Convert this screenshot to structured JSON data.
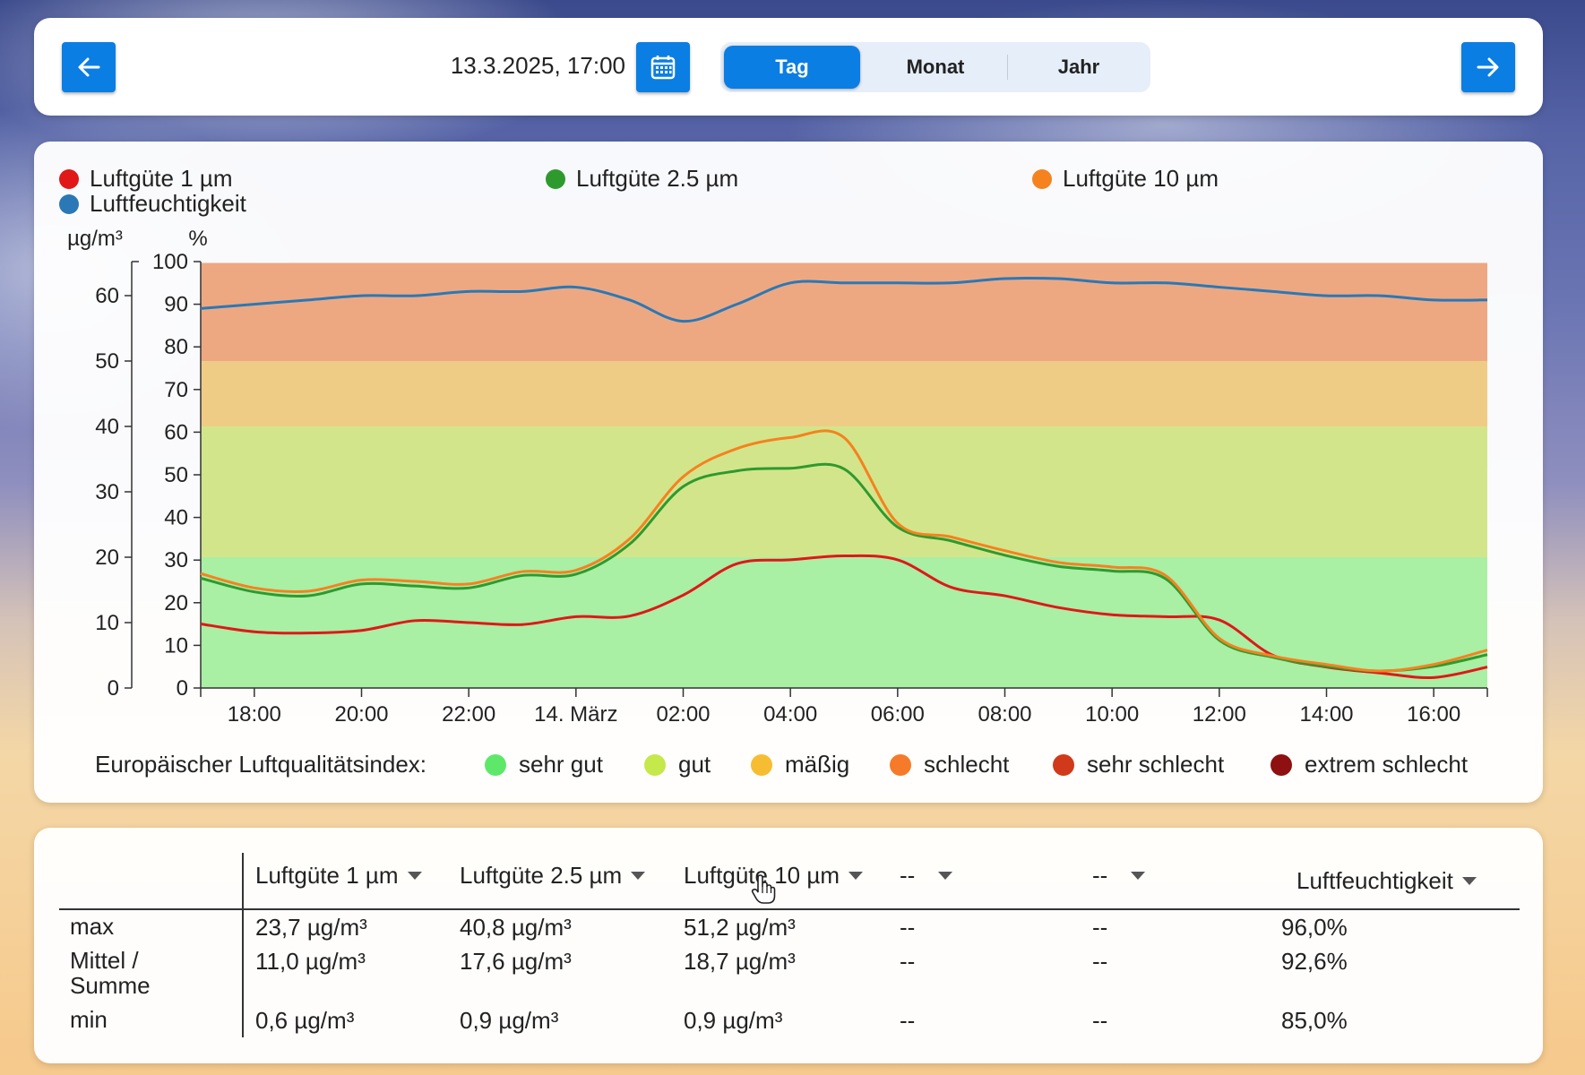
{
  "nav": {
    "date": "13.3.2025, 17:00",
    "tabs": [
      {
        "label": "Tag",
        "active": true
      },
      {
        "label": "Monat",
        "active": false
      },
      {
        "label": "Jahr",
        "active": false
      }
    ],
    "accent": "#0b7ee3"
  },
  "legend": [
    {
      "label": "Luftgüte 1 µm",
      "color": "#e01818"
    },
    {
      "label": "Luftgüte 2.5 µm",
      "color": "#2e9a2e"
    },
    {
      "label": "Luftgüte 10 µm",
      "color": "#f5821f"
    },
    {
      "label": "Luftfeuchtigkeit",
      "color": "#2a78b6"
    }
  ],
  "chart_data": {
    "type": "line",
    "y_left_label": "µg/m³",
    "y_right_label": "%",
    "y_left_range": [
      0,
      65
    ],
    "y_left_ticks": [
      0,
      10,
      20,
      30,
      40,
      50,
      60
    ],
    "y_right_range": [
      0,
      100
    ],
    "y_right_ticks": [
      0,
      10,
      20,
      30,
      40,
      50,
      60,
      70,
      80,
      90,
      100
    ],
    "x_ticks": [
      "18:00",
      "20:00",
      "22:00",
      "14. März",
      "02:00",
      "04:00",
      "06:00",
      "08:00",
      "10:00",
      "12:00",
      "14:00",
      "16:00"
    ],
    "x_range_hours": [
      17,
      41
    ],
    "bands": [
      {
        "from": 0,
        "to": 20,
        "color": "#a9efa4"
      },
      {
        "from": 20,
        "to": 40,
        "color": "#d3e58b"
      },
      {
        "from": 40,
        "to": 50,
        "color": "#efcc85"
      },
      {
        "from": 50,
        "to": 65,
        "color": "#eda882"
      }
    ],
    "series": [
      {
        "name": "Luftgüte 1 µm",
        "axis": "left",
        "color": "#e01818",
        "x": [
          17,
          18,
          19,
          20,
          21,
          22,
          23,
          24,
          25,
          26,
          27,
          28,
          29,
          30,
          31,
          32,
          33,
          34,
          35,
          36,
          37,
          38,
          39,
          40,
          41
        ],
        "values": [
          9.8,
          8.6,
          8.4,
          8.8,
          10.3,
          10.0,
          9.7,
          10.9,
          11.0,
          14.2,
          19.0,
          19.6,
          20.2,
          19.6,
          15.4,
          14.1,
          12.3,
          11.2,
          10.9,
          10.4,
          5.0,
          3.2,
          2.3,
          1.6,
          3.2
        ]
      },
      {
        "name": "Luftgüte 2.5 µm",
        "axis": "left",
        "color": "#2e9a2e",
        "x": [
          17,
          18,
          19,
          20,
          21,
          22,
          23,
          24,
          25,
          26,
          27,
          28,
          29,
          30,
          31,
          32,
          33,
          34,
          35,
          36,
          37,
          38,
          39,
          40,
          41
        ],
        "values": [
          16.8,
          14.7,
          14.1,
          15.9,
          15.6,
          15.3,
          17.2,
          17.4,
          22.0,
          30.8,
          33.2,
          33.6,
          33.5,
          24.6,
          22.5,
          20.3,
          18.6,
          17.9,
          16.7,
          7.3,
          4.7,
          3.3,
          2.6,
          3.3,
          5.1
        ]
      },
      {
        "name": "Luftgüte 10 µm",
        "axis": "left",
        "color": "#f5821f",
        "x": [
          17,
          18,
          19,
          20,
          21,
          22,
          23,
          24,
          25,
          26,
          27,
          28,
          29,
          30,
          31,
          32,
          33,
          34,
          35,
          36,
          37,
          38,
          39,
          40,
          41
        ],
        "values": [
          17.5,
          15.3,
          14.8,
          16.5,
          16.3,
          15.9,
          17.8,
          18.0,
          22.8,
          32.3,
          36.6,
          38.3,
          38.3,
          25.2,
          23.1,
          21.0,
          19.2,
          18.5,
          17.2,
          7.6,
          4.9,
          3.6,
          2.6,
          3.6,
          5.8
        ]
      },
      {
        "name": "Luftfeuchtigkeit",
        "axis": "right",
        "color": "#2a78b6",
        "x": [
          17,
          18,
          19,
          20,
          21,
          22,
          23,
          24,
          25,
          26,
          27,
          28,
          29,
          30,
          31,
          32,
          33,
          34,
          35,
          36,
          37,
          38,
          39,
          40,
          41
        ],
        "values": [
          89,
          90,
          91,
          92,
          92,
          93,
          93,
          94,
          91,
          86,
          90,
          95,
          95,
          95,
          95,
          96,
          96,
          95,
          95,
          94,
          93,
          92,
          92,
          91,
          91
        ]
      }
    ]
  },
  "aqi": {
    "title": "Europäischer Luftqualitätsindex:",
    "levels": [
      {
        "label": "sehr gut",
        "color": "#5ee86a"
      },
      {
        "label": "gut",
        "color": "#c5e84a"
      },
      {
        "label": "mäßig",
        "color": "#f7bd32"
      },
      {
        "label": "schlecht",
        "color": "#f57b2a"
      },
      {
        "label": "sehr schlecht",
        "color": "#d03a1b"
      },
      {
        "label": "extrem schlecht",
        "color": "#8e1010"
      }
    ]
  },
  "stats": {
    "columns": [
      "Luftgüte 1 µm",
      "Luftgüte 2.5 µm",
      "Luftgüte 10 µm",
      "--",
      "--",
      "Luftfeuchtigkeit"
    ],
    "rows": [
      {
        "label": "max",
        "values": [
          "23,7 µg/m³",
          "40,8 µg/m³",
          "51,2 µg/m³",
          "--",
          "--",
          "96,0%"
        ]
      },
      {
        "label": "Mittel / Summe",
        "values": [
          "11,0 µg/m³",
          "17,6 µg/m³",
          "18,7 µg/m³",
          "--",
          "--",
          "92,6%"
        ]
      },
      {
        "label": "min",
        "values": [
          "0,6 µg/m³",
          "0,9 µg/m³",
          "0,9 µg/m³",
          "--",
          "--",
          "85,0%"
        ]
      }
    ]
  }
}
